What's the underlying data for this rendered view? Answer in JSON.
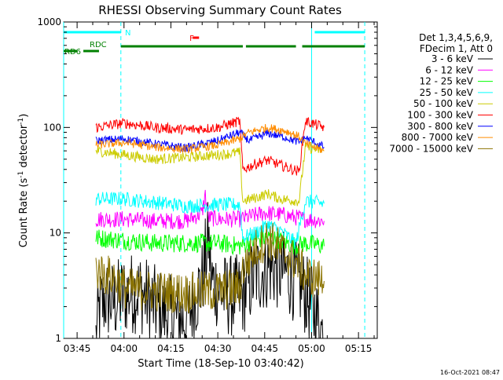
{
  "chart_data": {
    "type": "line",
    "title": "RHESSI Observing Summary Count Rates",
    "xlabel": "Start Time (18-Sep-10 03:40:42)",
    "ylabel_main": "Count Rate (s",
    "ylabel_sup1": "-1",
    "ylabel_mid": " detector",
    "ylabel_sup2": "-1",
    "ylabel_end": ")",
    "yscale": "log",
    "ylim": [
      1,
      1000
    ],
    "xlim": [
      "03:40:42",
      "05:21:00"
    ],
    "x_ticks": [
      "03:45",
      "04:00",
      "04:15",
      "04:30",
      "04:45",
      "05:00",
      "05:15"
    ],
    "y_ticks": [
      "1",
      "10",
      "100",
      "1000"
    ],
    "grid": false,
    "legend_position": "right",
    "legend_header": [
      "Det 1,3,4,5,6,9,",
      "FDecim 1, Att 0"
    ],
    "footer_date": "16-Oct-2021 08:47",
    "series": [
      {
        "name": "3 - 6 keV",
        "color": "#000000",
        "points": [
          [
            "03:51",
            1.0
          ],
          [
            "03:52",
            1.8
          ],
          [
            "03:54",
            2.4
          ],
          [
            "03:57",
            2.2
          ],
          [
            "04:00",
            2.6
          ],
          [
            "04:05",
            2.8
          ],
          [
            "04:10",
            2.0
          ],
          [
            "04:15",
            1.6
          ],
          [
            "04:20",
            1.5
          ],
          [
            "04:25",
            3.5
          ],
          [
            "04:27",
            9.0
          ],
          [
            "04:28",
            3.5
          ],
          [
            "04:32",
            2.6
          ],
          [
            "04:35",
            2.5
          ],
          [
            "04:38",
            2.6
          ],
          [
            "04:42",
            4.0
          ],
          [
            "04:47",
            4.8
          ],
          [
            "04:52",
            4.2
          ],
          [
            "04:57",
            3.0
          ],
          [
            "05:02",
            1.5
          ],
          [
            "05:04",
            1.0
          ]
        ]
      },
      {
        "name": "6 - 12 keV",
        "color": "#ff00ff",
        "points": [
          [
            "03:51",
            13.5
          ],
          [
            "04:00",
            13.5
          ],
          [
            "04:10",
            13.0
          ],
          [
            "04:20",
            13.0
          ],
          [
            "04:25",
            15.5
          ],
          [
            "04:26",
            23.0
          ],
          [
            "04:27",
            14.0
          ],
          [
            "04:30",
            13.5
          ],
          [
            "04:37",
            13.5
          ],
          [
            "04:45",
            15.5
          ],
          [
            "04:50",
            15.0
          ],
          [
            "04:55",
            14.0
          ],
          [
            "04:58",
            13.5
          ],
          [
            "05:04",
            13.0
          ]
        ]
      },
      {
        "name": "12 - 25 keV",
        "color": "#00ff00",
        "points": [
          [
            "03:51",
            9.0
          ],
          [
            "04:00",
            8.5
          ],
          [
            "04:10",
            8.0
          ],
          [
            "04:20",
            8.0
          ],
          [
            "04:30",
            8.0
          ],
          [
            "04:37",
            7.5
          ],
          [
            "04:42",
            8.5
          ],
          [
            "04:46",
            9.0
          ],
          [
            "04:50",
            8.5
          ],
          [
            "04:55",
            7.5
          ],
          [
            "04:58",
            8.0
          ],
          [
            "05:04",
            7.5
          ]
        ]
      },
      {
        "name": "25 - 50 keV",
        "color": "#00ffff",
        "points": [
          [
            "03:51",
            21.0
          ],
          [
            "04:00",
            21.0
          ],
          [
            "04:10",
            19.5
          ],
          [
            "04:20",
            18.0
          ],
          [
            "04:30",
            18.5
          ],
          [
            "04:37",
            18.5
          ],
          [
            "04:38",
            9.0
          ],
          [
            "04:42",
            10.0
          ],
          [
            "04:46",
            12.0
          ],
          [
            "04:50",
            10.5
          ],
          [
            "04:55",
            8.0
          ],
          [
            "04:58",
            20.0
          ],
          [
            "05:04",
            19.0
          ]
        ]
      },
      {
        "name": "50 - 100 keV",
        "color": "#cccc00",
        "points": [
          [
            "03:51",
            60.0
          ],
          [
            "04:00",
            55.0
          ],
          [
            "04:10",
            50.0
          ],
          [
            "04:20",
            52.0
          ],
          [
            "04:30",
            55.0
          ],
          [
            "04:37",
            58.0
          ],
          [
            "04:38",
            20.0
          ],
          [
            "04:42",
            21.5
          ],
          [
            "04:46",
            23.5
          ],
          [
            "04:50",
            21.0
          ],
          [
            "04:56",
            20.0
          ],
          [
            "04:58",
            65.0
          ],
          [
            "05:04",
            60.0
          ]
        ]
      },
      {
        "name": "100 - 300 keV",
        "color": "#ff0000",
        "points": [
          [
            "03:51",
            100.0
          ],
          [
            "04:00",
            110.0
          ],
          [
            "04:10",
            100.0
          ],
          [
            "04:20",
            95.0
          ],
          [
            "04:30",
            100.0
          ],
          [
            "04:37",
            115.0
          ],
          [
            "04:38",
            40.0
          ],
          [
            "04:42",
            45.0
          ],
          [
            "04:46",
            49.0
          ],
          [
            "04:50",
            44.0
          ],
          [
            "04:56",
            38.0
          ],
          [
            "04:58",
            115.0
          ],
          [
            "05:04",
            100.0
          ]
        ]
      },
      {
        "name": "300 - 800 keV",
        "color": "#0000ff",
        "points": [
          [
            "03:51",
            75.0
          ],
          [
            "04:00",
            78.0
          ],
          [
            "04:10",
            70.0
          ],
          [
            "04:20",
            64.0
          ],
          [
            "04:30",
            75.0
          ],
          [
            "04:37",
            90.0
          ],
          [
            "04:40",
            75.0
          ],
          [
            "04:46",
            88.0
          ],
          [
            "04:52",
            80.0
          ],
          [
            "04:56",
            72.0
          ],
          [
            "04:58",
            80.0
          ],
          [
            "05:04",
            65.0
          ]
        ]
      },
      {
        "name": "800 - 7000 keV",
        "color": "#ff8c00",
        "points": [
          [
            "03:51",
            68.0
          ],
          [
            "04:00",
            72.0
          ],
          [
            "04:10",
            65.0
          ],
          [
            "04:20",
            62.0
          ],
          [
            "04:30",
            68.0
          ],
          [
            "04:37",
            78.0
          ],
          [
            "04:40",
            90.0
          ],
          [
            "04:46",
            100.0
          ],
          [
            "04:52",
            92.0
          ],
          [
            "04:56",
            82.0
          ],
          [
            "04:58",
            70.0
          ],
          [
            "05:04",
            60.0
          ]
        ]
      },
      {
        "name": "7000 - 15000 keV",
        "color": "#8b7300",
        "points": [
          [
            "03:51",
            4.5
          ],
          [
            "03:54",
            4.0
          ],
          [
            "03:57",
            3.8
          ],
          [
            "04:00",
            3.0
          ],
          [
            "04:10",
            2.8
          ],
          [
            "04:20",
            2.7
          ],
          [
            "04:30",
            2.8
          ],
          [
            "04:37",
            3.0
          ],
          [
            "04:38",
            4.5
          ],
          [
            "04:42",
            7.0
          ],
          [
            "04:46",
            9.0
          ],
          [
            "04:50",
            7.0
          ],
          [
            "04:56",
            5.0
          ],
          [
            "04:58",
            4.0
          ],
          [
            "05:04",
            3.5
          ]
        ]
      }
    ],
    "state_bars": [
      {
        "label": "N",
        "color": "#00ffff",
        "intervals": [
          [
            "03:40:42",
            "03:59:00"
          ],
          [
            "05:01:00",
            "05:17:00"
          ]
        ]
      },
      {
        "label": "F",
        "color": "#ff0000",
        "intervals": [
          [
            "04:22:00",
            "04:24:00"
          ]
        ]
      },
      {
        "label": "RDC",
        "color": "#008000",
        "intervals": [
          [
            "03:59:00",
            "04:38:00"
          ],
          [
            "04:39:00",
            "04:55:00"
          ],
          [
            "04:57:00",
            "05:17:00"
          ]
        ]
      },
      {
        "label": "RD6",
        "color": "#008000",
        "intervals": [
          [
            "03:40:42",
            "03:45:00"
          ],
          [
            "03:47:00",
            "03:52:00"
          ]
        ]
      }
    ],
    "markers": [
      {
        "time": "03:40:42",
        "color": "#00ffff",
        "style": "solid"
      },
      {
        "time": "03:59:00",
        "color": "#00ffff",
        "style": "dashed"
      },
      {
        "time": "05:00:00",
        "color": "#00ffff",
        "style": "solid"
      },
      {
        "time": "05:17:00",
        "color": "#00ffff",
        "style": "dashed"
      }
    ]
  }
}
